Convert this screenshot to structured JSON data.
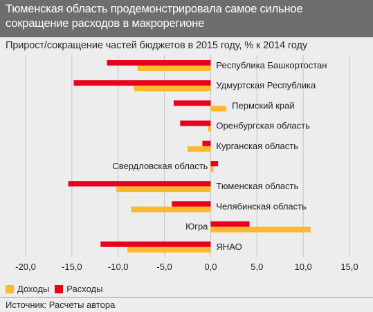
{
  "chart_data": {
    "type": "bar",
    "orientation": "horizontal",
    "title": "Тюменская область продемонстрировала самое сильное сокращение расходов в макрорегионе",
    "subtitle": "Прирост/сокращение частей бюджетов в 2015 году, % к 2014 году",
    "categories": [
      "Республика Башкортостан",
      "Удмуртская Республика",
      "Пермский край",
      "Оренбургская область",
      "Курганская область",
      "Свердловская область",
      "Тюменская область",
      "Челябинская область",
      "Югра",
      "ЯНАО"
    ],
    "series": [
      {
        "name": "Расходы",
        "color": "#e8001c",
        "values": [
          -11.2,
          -14.8,
          -4.0,
          -3.3,
          -0.9,
          0.8,
          -15.4,
          -4.2,
          4.2,
          -11.9
        ]
      },
      {
        "name": "Доходы",
        "color": "#fbb92e",
        "values": [
          -7.9,
          -8.3,
          1.7,
          -0.3,
          -2.5,
          0.3,
          -10.2,
          -8.6,
          10.8,
          -9.0
        ]
      }
    ],
    "xlim": [
      -20,
      15
    ],
    "xticks": [
      -20,
      -15,
      -10,
      -5,
      0,
      5,
      10,
      15
    ],
    "xtick_labels": [
      "-20,0",
      "-15,0",
      "-10,0",
      "-5,0",
      "0,0",
      "5,0",
      "10,0",
      "15,0"
    ],
    "grid": "vertical",
    "legend": "bottom-left"
  },
  "legend": {
    "income_label": "Доходы",
    "expense_label": "Расходы"
  },
  "source": "Источник: Расчеты автора"
}
